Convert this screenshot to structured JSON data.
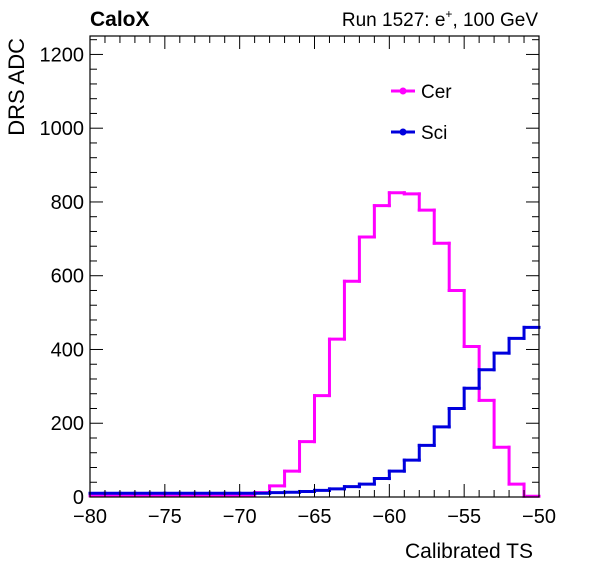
{
  "header": {
    "experiment": "CaloX",
    "run_label": "Run 1527: e",
    "run_superscript": "+",
    "run_suffix": ", 100 GeV"
  },
  "chart_data": {
    "type": "line",
    "step": true,
    "xlabel": "Calibrated TS",
    "ylabel": "DRS ADC",
    "xlim": [
      -80,
      -50
    ],
    "ylim": [
      0,
      1250
    ],
    "x_ticks": [
      -80,
      -75,
      -70,
      -65,
      -60,
      -55,
      -50
    ],
    "x_tick_labels": [
      "−80",
      "−75",
      "−70",
      "−65",
      "−60",
      "−55",
      "−50"
    ],
    "y_ticks": [
      0,
      200,
      400,
      600,
      800,
      1000,
      1200
    ],
    "y_tick_labels": [
      "0",
      "200",
      "400",
      "600",
      "800",
      "1000",
      "1200"
    ],
    "grid": false,
    "legend_position": "top-right",
    "bin_edges": [
      -80,
      -79,
      -78,
      -77,
      -76,
      -75,
      -74,
      -73,
      -72,
      -71,
      -70,
      -69,
      -68,
      -67,
      -66,
      -65,
      -64,
      -63,
      -62,
      -61,
      -60,
      -59,
      -58,
      -57,
      -56,
      -55,
      -54,
      -53,
      -52,
      -51,
      -50
    ],
    "series": [
      {
        "name": "Cer",
        "color": "#ff00ff",
        "values": [
          3,
          3,
          3,
          3,
          3,
          3,
          3,
          3,
          3,
          3,
          5,
          12,
          30,
          70,
          150,
          275,
          428,
          585,
          705,
          790,
          825,
          822,
          778,
          688,
          560,
          408,
          262,
          135,
          35,
          2
        ]
      },
      {
        "name": "Sci",
        "color": "#0000dd",
        "values": [
          10,
          10,
          10,
          10,
          10,
          10,
          10,
          10,
          10,
          10,
          10,
          10,
          12,
          13,
          15,
          18,
          22,
          28,
          35,
          50,
          70,
          100,
          140,
          190,
          240,
          295,
          345,
          390,
          430,
          460
        ]
      }
    ]
  }
}
